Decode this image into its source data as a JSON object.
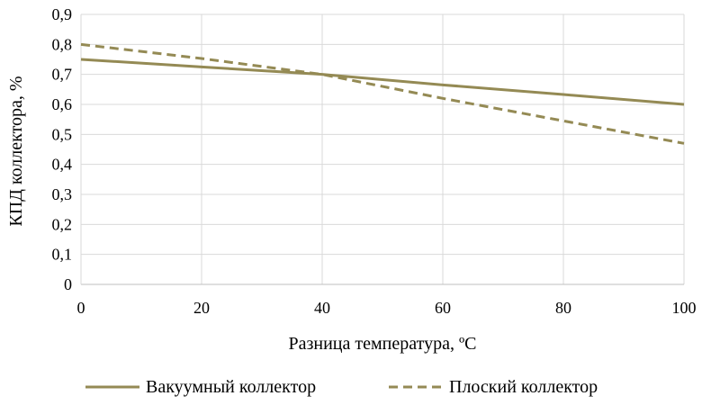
{
  "chart_data": {
    "type": "line",
    "title": "",
    "xlabel": "Разница температура, ºC",
    "ylabel": "КПД коллектора, %",
    "xlim": [
      0,
      100
    ],
    "ylim": [
      0,
      0.9
    ],
    "xticks": [
      0,
      20,
      40,
      60,
      80,
      100
    ],
    "xtick_labels": [
      "0",
      "20",
      "40",
      "60",
      "80",
      "100"
    ],
    "yticks": [
      0,
      0.1,
      0.2,
      0.3,
      0.4,
      0.5,
      0.6,
      0.7,
      0.8,
      0.9
    ],
    "ytick_labels": [
      "0",
      "0,1",
      "0,2",
      "0,3",
      "0,4",
      "0,5",
      "0,6",
      "0,7",
      "0,8",
      "0,9"
    ],
    "grid": true,
    "legend_position": "bottom",
    "series": [
      {
        "name": "Вакуумный коллектор",
        "color": "#948a54",
        "style": "solid",
        "x": [
          0,
          20,
          40,
          60,
          80,
          100
        ],
        "y": [
          0.75,
          0.725,
          0.7,
          0.665,
          0.633,
          0.6
        ]
      },
      {
        "name": "Плоский коллектор",
        "color": "#948a54",
        "style": "dashed",
        "x": [
          0,
          20,
          40,
          60,
          80,
          100
        ],
        "y": [
          0.8,
          0.753,
          0.7,
          0.62,
          0.545,
          0.47
        ]
      }
    ]
  }
}
